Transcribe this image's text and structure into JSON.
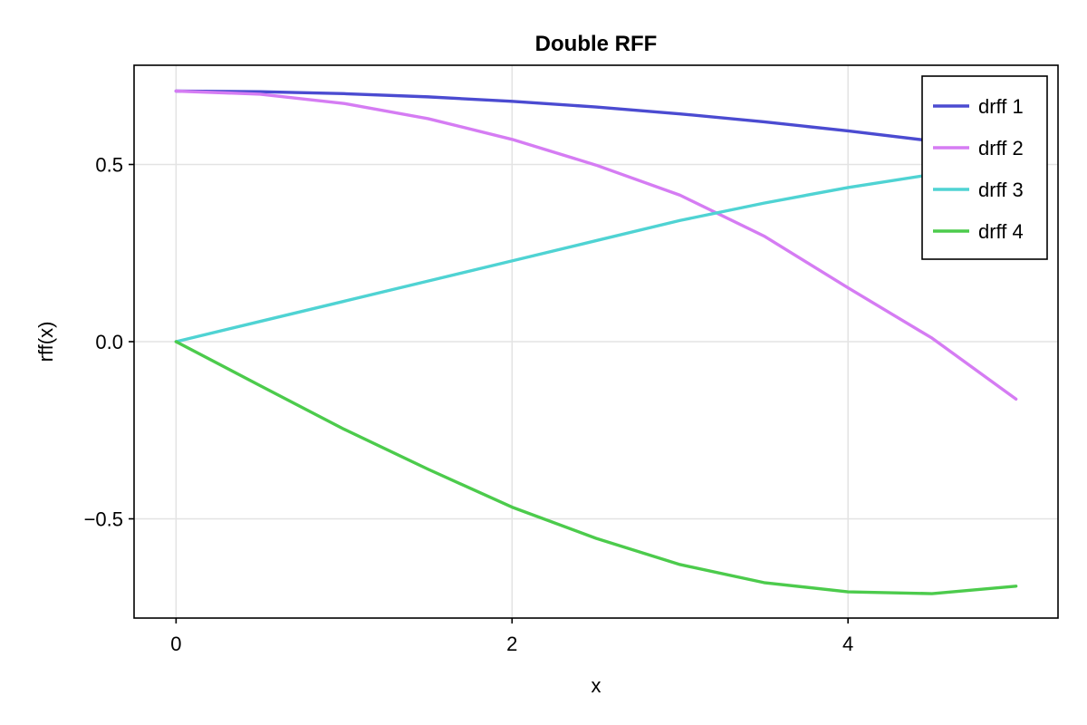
{
  "chart_data": {
    "type": "line",
    "title": "Double RFF",
    "xlabel": "x",
    "ylabel": "rff(x)",
    "xlim": [
      -0.25,
      5.25
    ],
    "ylim": [
      -0.78,
      0.78
    ],
    "x_ticks": [
      0,
      2,
      4
    ],
    "x_tick_labels": [
      "0",
      "2",
      "4"
    ],
    "y_ticks": [
      -0.5,
      0.0,
      0.5
    ],
    "y_tick_labels": [
      "−0.5",
      "0.0",
      "0.5"
    ],
    "grid": true,
    "legend_position": "top-right",
    "x": [
      0,
      0.5,
      1,
      1.5,
      2,
      2.5,
      3,
      3.5,
      4,
      4.5,
      5
    ],
    "series": [
      {
        "name": "drff 1",
        "color": "#4b4bd1",
        "values": [
          0.7071,
          0.7053,
          0.6998,
          0.6908,
          0.6782,
          0.6622,
          0.6428,
          0.6203,
          0.5947,
          0.5663,
          0.5349
        ]
      },
      {
        "name": "drff 2",
        "color": "#d57cf3",
        "values": [
          0.7071,
          0.6983,
          0.6721,
          0.6293,
          0.5708,
          0.4982,
          0.4133,
          0.298,
          0.152,
          0.01,
          -0.162
        ]
      },
      {
        "name": "drff 3",
        "color": "#4fd3d3",
        "values": [
          0.0,
          0.057,
          0.114,
          0.171,
          0.228,
          0.285,
          0.342,
          0.391,
          0.435,
          0.472,
          0.5
        ]
      },
      {
        "name": "drff 4",
        "color": "#4ccb4c",
        "values": [
          0.0,
          -0.124,
          -0.247,
          -0.36,
          -0.467,
          -0.555,
          -0.629,
          -0.68,
          -0.706,
          -0.711,
          -0.69
        ]
      }
    ]
  }
}
